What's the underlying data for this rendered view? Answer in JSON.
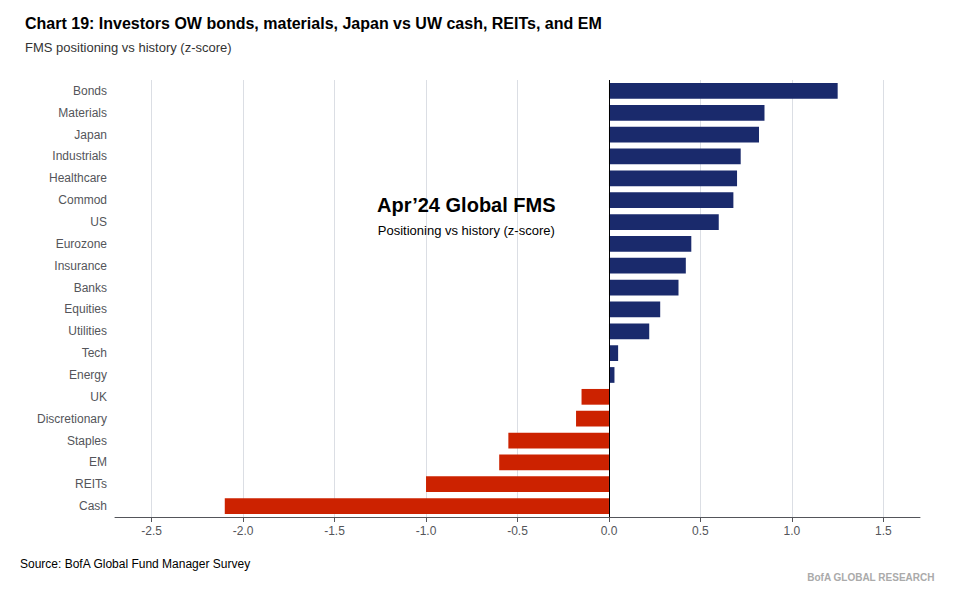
{
  "chart_data": {
    "type": "bar",
    "orientation": "horizontal",
    "title": "Chart 19: Investors OW bonds, materials, Japan vs UW cash, REITs, and EM",
    "subtitle": "FMS positioning vs history (z-score)",
    "annotations": [
      "Apr’24 Global FMS",
      "Positioning vs history (z-score)"
    ],
    "source": "Source: BofA Global Fund Manager Survey",
    "branding": "BofA GLOBAL RESEARCH",
    "categories": [
      "Bonds",
      "Materials",
      "Japan",
      "Industrials",
      "Healthcare",
      "Commod",
      "US",
      "Eurozone",
      "Insurance",
      "Banks",
      "Equities",
      "Utilities",
      "Tech",
      "Energy",
      "UK",
      "Discretionary",
      "Staples",
      "EM",
      "REITs",
      "Cash"
    ],
    "values": [
      1.25,
      0.85,
      0.82,
      0.72,
      0.7,
      0.68,
      0.6,
      0.45,
      0.42,
      0.38,
      0.28,
      0.22,
      0.05,
      0.03,
      -0.15,
      -0.18,
      -0.55,
      -0.6,
      -1.0,
      -2.1
    ],
    "colors": [
      "#1a2a6c",
      "#1a2a6c",
      "#1a2a6c",
      "#1a2a6c",
      "#1a2a6c",
      "#1a2a6c",
      "#1a2a6c",
      "#1a2a6c",
      "#1a2a6c",
      "#1a2a6c",
      "#1a2a6c",
      "#1a2a6c",
      "#1a2a6c",
      "#1a2a6c",
      "#cc2200",
      "#cc2200",
      "#cc2200",
      "#cc2200",
      "#cc2200",
      "#cc2200"
    ],
    "xlim": [
      -2.7,
      1.7
    ],
    "xticks": [
      -2.5,
      {
        "value": -2.0,
        "label": "-2.0"
      },
      -1.5,
      {
        "value": -1.0,
        "label": "-1.0"
      },
      -0.5,
      {
        "value": 0.0,
        "label": "0.0"
      },
      0.5,
      {
        "value": 1.0,
        "label": "1.0"
      },
      1.5
    ],
    "grid": true
  }
}
